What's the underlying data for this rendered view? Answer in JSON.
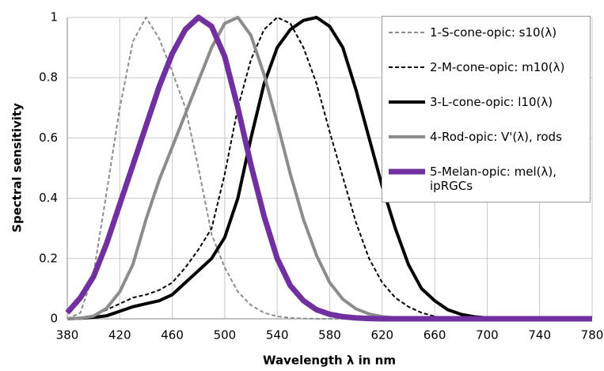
{
  "chart_data": {
    "type": "line",
    "xlabel": "Wavelength λ in nm",
    "ylabel": "Spectral sensitivity",
    "x": [
      380,
      390,
      400,
      410,
      420,
      430,
      440,
      450,
      460,
      470,
      480,
      490,
      500,
      510,
      520,
      530,
      540,
      550,
      560,
      570,
      580,
      590,
      600,
      610,
      620,
      630,
      640,
      650,
      660,
      670,
      680,
      690,
      700,
      710,
      720,
      730,
      740,
      750,
      760,
      770,
      780
    ],
    "series": [
      {
        "name": "1-S-cone-opic: s10(λ)",
        "color": "#8c8c8c",
        "values": [
          0,
          0.02,
          0.15,
          0.42,
          0.7,
          0.92,
          1.0,
          0.93,
          0.82,
          0.7,
          0.5,
          0.28,
          0.17,
          0.09,
          0.045,
          0.02,
          0.008,
          0.003,
          0.001,
          0,
          0,
          0,
          0,
          0,
          0,
          0,
          0,
          0,
          0,
          0,
          0,
          0,
          0,
          0,
          0,
          0,
          0,
          0,
          0,
          0,
          0
        ]
      },
      {
        "name": "2-M-cone-opic: m10(λ)",
        "color": "#000000",
        "values": [
          0,
          0.002,
          0.01,
          0.03,
          0.05,
          0.07,
          0.08,
          0.095,
          0.12,
          0.17,
          0.23,
          0.3,
          0.48,
          0.7,
          0.86,
          0.96,
          1.0,
          0.98,
          0.9,
          0.78,
          0.62,
          0.47,
          0.32,
          0.2,
          0.12,
          0.07,
          0.04,
          0.02,
          0.008,
          0.003,
          0.001,
          0,
          0,
          0,
          0,
          0,
          0,
          0,
          0,
          0,
          0
        ]
      },
      {
        "name": "3-L-cone-opic: l10(λ)",
        "color": "#000000",
        "values": [
          0,
          0.002,
          0.005,
          0.01,
          0.025,
          0.04,
          0.05,
          0.06,
          0.08,
          0.12,
          0.16,
          0.2,
          0.27,
          0.4,
          0.6,
          0.78,
          0.9,
          0.96,
          0.99,
          1.0,
          0.97,
          0.9,
          0.76,
          0.6,
          0.44,
          0.3,
          0.18,
          0.1,
          0.06,
          0.03,
          0.015,
          0.007,
          0.003,
          0.001,
          0,
          0,
          0,
          0,
          0,
          0,
          0
        ]
      },
      {
        "name": "4-Rod-opic: V'(λ), rods",
        "color": "#8c8c8c",
        "values": [
          0,
          0.002,
          0.009,
          0.035,
          0.09,
          0.18,
          0.33,
          0.46,
          0.57,
          0.68,
          0.79,
          0.9,
          0.98,
          1.0,
          0.94,
          0.81,
          0.65,
          0.48,
          0.33,
          0.21,
          0.12,
          0.065,
          0.033,
          0.016,
          0.007,
          0.003,
          0.001,
          0,
          0,
          0,
          0,
          0,
          0,
          0,
          0,
          0,
          0,
          0,
          0,
          0,
          0
        ]
      },
      {
        "name": "5-Melan-opic: mel(λ), ipRGCs",
        "color": "#7030a0",
        "values": [
          0.02,
          0.07,
          0.14,
          0.25,
          0.38,
          0.51,
          0.64,
          0.77,
          0.88,
          0.96,
          1.0,
          0.97,
          0.87,
          0.7,
          0.51,
          0.34,
          0.2,
          0.11,
          0.06,
          0.03,
          0.015,
          0.007,
          0.003,
          0.001,
          0,
          0,
          0,
          0,
          0,
          0,
          0,
          0,
          0,
          0,
          0,
          0,
          0,
          0,
          0,
          0,
          0
        ]
      }
    ],
    "xlim": [
      380,
      780
    ],
    "xticks": [
      380,
      420,
      460,
      500,
      540,
      580,
      620,
      660,
      700,
      740,
      780
    ],
    "ylim": [
      0,
      1
    ],
    "yticks": [
      0,
      0.2,
      0.4,
      0.6,
      0.8,
      1
    ],
    "grid": true,
    "legend": "upper right"
  }
}
